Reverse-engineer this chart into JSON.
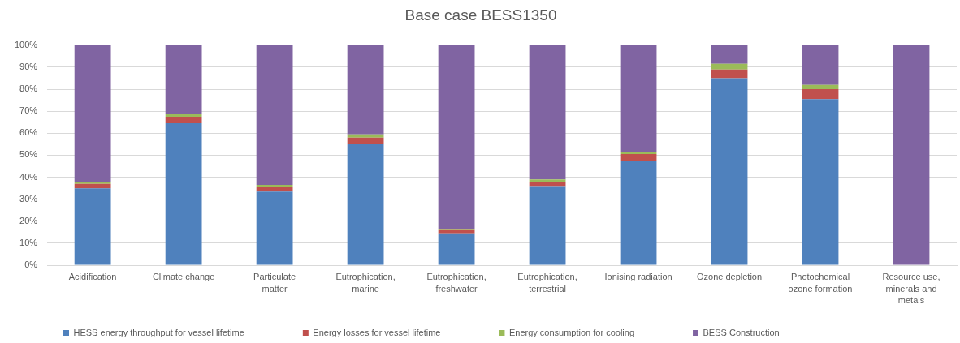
{
  "chart_data": {
    "type": "bar",
    "title": "Base case BESS1350",
    "categories": [
      "Acidification",
      "Climate change",
      "Particulate matter",
      "Eutrophication, marine",
      "Eutrophication, freshwater",
      "Eutrophication, terrestrial",
      "Ionising radiation",
      "Ozone depletion",
      "Photochemical ozone formation",
      "Resource use, minerals and metals"
    ],
    "series": [
      {
        "name": "HESS energy throughput for vessel lifetime",
        "color": "#4f81bd",
        "values": [
          35,
          64.5,
          33.5,
          55,
          14.5,
          36,
          47.5,
          85,
          75.5,
          0
        ]
      },
      {
        "name": "Energy losses for vessel lifetime",
        "color": "#c0504d",
        "values": [
          2,
          3,
          2,
          3,
          1.5,
          2,
          3,
          4,
          4.5,
          0
        ]
      },
      {
        "name": "Energy consumption for cooling",
        "color": "#9bbb59",
        "values": [
          1,
          1.5,
          1,
          1.5,
          0.5,
          1,
          1,
          2.5,
          2,
          0
        ]
      },
      {
        "name": "BESS Construction",
        "color": "#8064a2",
        "values": [
          62,
          31,
          63.5,
          40.5,
          83.5,
          61,
          48.5,
          8.5,
          18,
          100
        ]
      }
    ],
    "stacked": true,
    "ylim": [
      0,
      100
    ],
    "yticks": [
      {
        "value": 0,
        "label": "0%"
      },
      {
        "value": 10,
        "label": "10%"
      },
      {
        "value": 20,
        "label": "20%"
      },
      {
        "value": 30,
        "label": "30%"
      },
      {
        "value": 40,
        "label": "40%"
      },
      {
        "value": 50,
        "label": "50%"
      },
      {
        "value": 60,
        "label": "60%"
      },
      {
        "value": 70,
        "label": "70%"
      },
      {
        "value": 80,
        "label": "80%"
      },
      {
        "value": 90,
        "label": "90%"
      },
      {
        "value": 100,
        "label": "100%"
      }
    ],
    "grid": "y",
    "legend": "bottom"
  }
}
